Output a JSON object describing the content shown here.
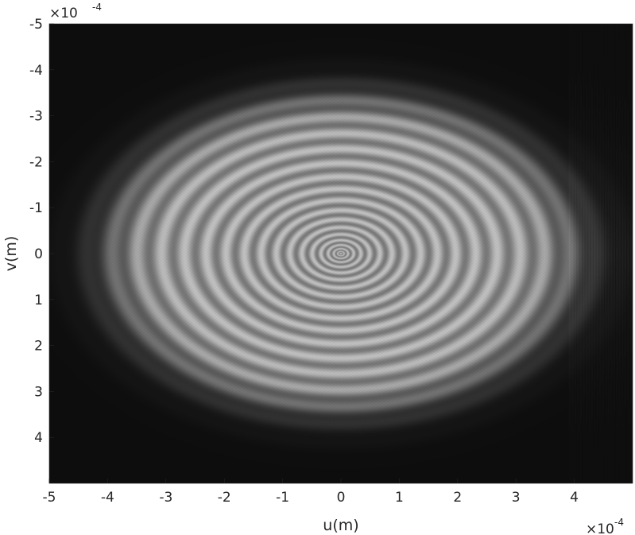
{
  "chart_data": {
    "type": "heatmap",
    "colormap": "grayscale",
    "description_of_values": "normalized intensity 0-1",
    "xlabel": "u(m)",
    "ylabel": "v(m)",
    "x_exponent": {
      "base": "×10",
      "power": "-4"
    },
    "y_exponent": {
      "base": "×10",
      "power": "-4"
    },
    "xlim": [
      -5,
      5
    ],
    "ylim": [
      -5,
      5
    ],
    "y_reversed": true,
    "x_ticks": [
      -5,
      -4,
      -3,
      -2,
      -1,
      0,
      1,
      2,
      3,
      4
    ],
    "x_tick_labels": [
      "-5",
      "-4",
      "-3",
      "-2",
      "-1",
      "0",
      "1",
      "2",
      "3",
      "4"
    ],
    "y_ticks": [
      -5,
      -4,
      -3,
      -2,
      -1,
      0,
      1,
      2,
      3,
      4
    ],
    "y_tick_labels": [
      "-5",
      "-4",
      "-3",
      "-2",
      "-1",
      "0",
      "1",
      "2",
      "3",
      "4"
    ],
    "pattern": {
      "shape": "elliptical concentric fringes",
      "center": [
        0,
        0
      ],
      "semi_axis_u": 4.0,
      "semi_axis_v": 3.4,
      "center_intensity": 0.78,
      "edge_intensity": 0.05,
      "fringe_count": 18
    },
    "grid": false,
    "legend": "none"
  }
}
